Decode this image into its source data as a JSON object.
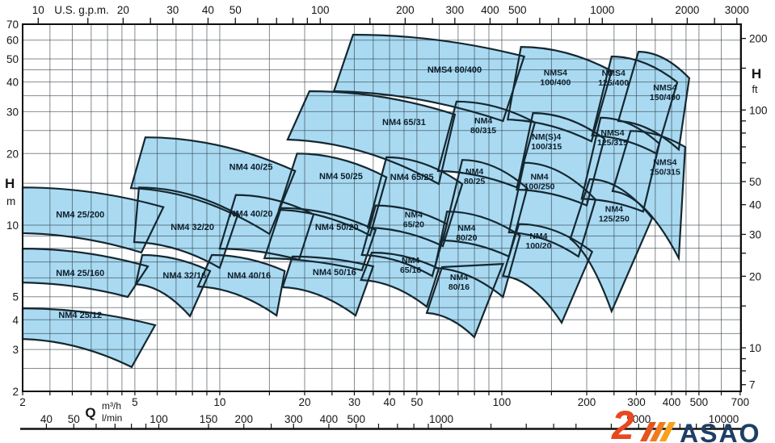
{
  "chart_data": {
    "type": "area",
    "title": "",
    "x_axis": {
      "label": "Q",
      "unit_primary": "m³/h",
      "unit_secondary": "l/min",
      "range_m3h": [
        2,
        700
      ],
      "labels_m3h": [
        2,
        5,
        10,
        20,
        30,
        40,
        50,
        100,
        200,
        300,
        400,
        500,
        700
      ],
      "labels_lmin": [
        40,
        50,
        100,
        150,
        200,
        300,
        400,
        500,
        1000,
        5000,
        10000
      ],
      "ticks_lmin": [
        40,
        50,
        60,
        70,
        80,
        90,
        100,
        150,
        200,
        250,
        300,
        400,
        500,
        600,
        700,
        800,
        900,
        1000,
        1500,
        2000,
        2500,
        3000,
        4000,
        5000,
        6000,
        7000,
        8000,
        9000,
        10000
      ]
    },
    "top_axis": {
      "unit": "U.S. g.p.m.",
      "labels": [
        10,
        20,
        30,
        40,
        50,
        100,
        200,
        300,
        400,
        500,
        1000,
        2000,
        3000
      ],
      "ticks": [
        10,
        15,
        20,
        25,
        30,
        40,
        50,
        60,
        70,
        80,
        90,
        100,
        150,
        200,
        250,
        300,
        400,
        500,
        600,
        700,
        800,
        900,
        1000,
        1500,
        2000,
        2500,
        3000
      ]
    },
    "y_axis_left": {
      "symbol": "H",
      "unit": "m",
      "range": [
        2,
        70
      ],
      "labels": [
        70,
        60,
        50,
        40,
        30,
        20,
        10,
        5,
        4,
        3,
        2
      ]
    },
    "y_axis_right": {
      "symbol": "H",
      "unit": "ft",
      "labels": [
        200,
        100,
        50,
        40,
        30,
        20,
        10,
        7
      ],
      "ticks": [
        7,
        8,
        9,
        10,
        15,
        20,
        25,
        30,
        40,
        50,
        60,
        70,
        80,
        90,
        100,
        150,
        200
      ]
    },
    "grid": {
      "on": true,
      "multipliers": [
        1,
        1.5,
        2,
        2.5,
        3,
        3.5,
        4,
        4.5,
        5,
        6,
        7,
        8,
        9
      ]
    },
    "colors": {
      "fill": "#a9daf2",
      "outline": "#152730",
      "grid": "rgba(50,60,68,0.6)",
      "frame": "#0d0d0d",
      "pump_label": "#0e1e2a",
      "axis_text": "#161616"
    },
    "pumps": [
      {
        "model": "NM4 25/200",
        "wrap": false,
        "v": false,
        "label": [
          3.2,
          11.1
        ],
        "envelope": {
          "tl": [
            2,
            14.4
          ],
          "tr": [
            6.31,
            11.9
          ],
          "br": [
            5.27,
            7.67
          ],
          "bl": [
            2,
            9.25
          ]
        }
      },
      {
        "model": "NM4 25/160",
        "wrap": false,
        "v": false,
        "label": [
          3.2,
          6.3
        ],
        "envelope": {
          "tl": [
            2,
            7.97
          ],
          "tr": [
            5.56,
            6.71
          ],
          "br": [
            4.72,
            4.99
          ],
          "bl": [
            2,
            5.74
          ]
        }
      },
      {
        "model": "NM4 25/12",
        "wrap": false,
        "v": true,
        "label": [
          3.2,
          4.2
        ],
        "envelope": {
          "tl": [
            2,
            4.47
          ],
          "tr": [
            5.9,
            3.8
          ],
          "br": [
            4.87,
            2.53
          ],
          "bl": [
            2,
            3.32
          ]
        }
      },
      {
        "model": "NM4 32/20",
        "wrap": false,
        "v": false,
        "label": [
          8,
          9.85
        ],
        "envelope": {
          "tl": [
            5.17,
            14.4
          ],
          "tr": [
            11.6,
            11.1
          ],
          "br": [
            10.0,
            6.61
          ],
          "bl": [
            4.97,
            8.49
          ]
        }
      },
      {
        "model": "NM4 32/16",
        "wrap": false,
        "v": true,
        "label": [
          7.5,
          6.16
        ],
        "envelope": {
          "tl": [
            5.31,
            7.49
          ],
          "tr": [
            9.24,
            6.41
          ],
          "br": [
            7.84,
            4.14
          ],
          "bl": [
            5.04,
            5.65
          ]
        }
      },
      {
        "model": "NM4 40/25",
        "wrap": false,
        "v": false,
        "label": [
          12.9,
          17.6
        ],
        "envelope": {
          "tl": [
            5.45,
            23.4
          ],
          "tr": [
            18.5,
            16.9
          ],
          "br": [
            15.0,
            9.18
          ],
          "bl": [
            4.84,
            14.3
          ]
        }
      },
      {
        "model": "NM4 40/20",
        "wrap": false,
        "v": false,
        "label": [
          12.9,
          11.2
        ],
        "envelope": {
          "tl": [
            11.4,
            13.4
          ],
          "tr": [
            21.5,
            11.1
          ],
          "br": [
            19.1,
            7.15
          ],
          "bl": [
            10.0,
            7.97
          ]
        }
      },
      {
        "model": "NM4 40/16",
        "wrap": false,
        "v": true,
        "label": [
          12.7,
          6.16
        ],
        "envelope": {
          "tl": [
            9.37,
            7.49
          ],
          "tr": [
            17.0,
            6.41
          ],
          "br": [
            15.9,
            4.17
          ],
          "bl": [
            8.37,
            5.52
          ]
        }
      },
      {
        "model": "NM4 50/25",
        "wrap": false,
        "v": false,
        "label": [
          26.9,
          16.1
        ],
        "envelope": {
          "tl": [
            18.8,
            20.0
          ],
          "tr": [
            39.0,
            15.9
          ],
          "br": [
            34.1,
            9.04
          ],
          "bl": [
            16.2,
            11.6
          ]
        }
      },
      {
        "model": "NM4 50/20",
        "wrap": false,
        "v": false,
        "label": [
          26.0,
          9.85
        ],
        "envelope": {
          "tl": [
            16.5,
            11.8
          ],
          "tr": [
            35.7,
            9.54
          ],
          "br": [
            31.9,
            6.46
          ],
          "bl": [
            14.4,
            7.26
          ]
        }
      },
      {
        "model": "NM4 50/16",
        "wrap": false,
        "v": true,
        "label": [
          25.5,
          6.36
        ],
        "envelope": {
          "tl": [
            18.1,
            7.38
          ],
          "tr": [
            35.0,
            6.71
          ],
          "br": [
            30.3,
            4.17
          ],
          "bl": [
            16.7,
            5.48
          ]
        }
      },
      {
        "model": "NM4 65/31",
        "wrap": false,
        "v": false,
        "label": [
          45.0,
          27.2
        ],
        "envelope": {
          "tl": [
            20.8,
            36.6
          ],
          "tr": [
            68.2,
            29.2
          ],
          "br": [
            59.8,
            14.9
          ],
          "bl": [
            17.4,
            22.9
          ]
        }
      },
      {
        "model": "NM4 65/25",
        "wrap": false,
        "v": false,
        "label": [
          48.0,
          16.0
        ],
        "envelope": {
          "tl": [
            39.0,
            19.3
          ],
          "tr": [
            72.4,
            14.9
          ],
          "br": [
            61.8,
            8.16
          ],
          "bl": [
            33.5,
            9.77
          ]
        }
      },
      {
        "model": "NM4 65/20",
        "wrap": true,
        "v": false,
        "label": [
          48.7,
          10.6
        ],
        "envelope": {
          "tl": [
            35.7,
            12.1
          ],
          "tr": [
            63.9,
            10.1
          ],
          "br": [
            56.7,
            6.11
          ],
          "bl": [
            31.9,
            7.49
          ]
        }
      },
      {
        "model": "NM4 65/16",
        "wrap": true,
        "v": true,
        "label": [
          47.5,
          6.82
        ],
        "envelope": {
          "tl": [
            34.6,
            7.67
          ],
          "tr": [
            59.8,
            6.56
          ],
          "br": [
            54.2,
            4.54
          ],
          "bl": [
            31.7,
            5.88
          ]
        }
      },
      {
        "model": "NMS4 80/400",
        "wrap": false,
        "v": false,
        "label": [
          68.0,
          45.2
        ],
        "envelope": {
          "tl": [
            29.7,
            63.2
          ],
          "tr": [
            120,
            51.2
          ],
          "br": [
            101,
            27.4
          ],
          "bl": [
            25.4,
            36.6
          ]
        }
      },
      {
        "model": "NM4 80/315",
        "wrap": true,
        "v": false,
        "label": [
          86.0,
          26.4
        ],
        "envelope": {
          "tl": [
            69.1,
            33.1
          ],
          "tr": [
            131,
            27.0
          ],
          "br": [
            113,
            14.4
          ],
          "bl": [
            59.4,
            16.9
          ]
        }
      },
      {
        "model": "NM4 80/25",
        "wrap": true,
        "v": false,
        "label": [
          80.0,
          16.1
        ],
        "envelope": {
          "tl": [
            72.4,
            18.8
          ],
          "tr": [
            123,
            14.3
          ],
          "br": [
            106,
            7.38
          ],
          "bl": [
            61.8,
            8.62
          ]
        }
      },
      {
        "model": "NM4 80/20",
        "wrap": true,
        "v": false,
        "label": [
          75.0,
          9.32
        ],
        "envelope": {
          "tl": [
            63.9,
            11.4
          ],
          "tr": [
            116,
            9.04
          ],
          "br": [
            101,
            4.99
          ],
          "bl": [
            57.9,
            6.61
          ]
        }
      },
      {
        "model": "NM4 80/16",
        "wrap": true,
        "v": true,
        "label": [
          70.5,
          5.79
        ],
        "envelope": {
          "tl": [
            61.4,
            6.66
          ],
          "tr": [
            101,
            6.87
          ],
          "br": [
            79.9,
            3.38
          ],
          "bl": [
            54.2,
            4.27
          ]
        }
      },
      {
        "model": "NMS4 100/400",
        "wrap": true,
        "v": false,
        "label": [
          155,
          42.0
        ],
        "envelope": {
          "tl": [
            117,
            56.2
          ],
          "tr": [
            245,
            44.5
          ],
          "br": [
            208,
            22.5
          ],
          "bl": [
            105,
            27.8
          ]
        }
      },
      {
        "model": "NM(S)4 100/315",
        "wrap": true,
        "v": false,
        "label": [
          144,
          22.5
        ],
        "envelope": {
          "tl": [
            129,
            29.6
          ],
          "tr": [
            231,
            23.1
          ],
          "br": [
            200,
            12.1
          ],
          "bl": [
            113,
            14.1
          ]
        }
      },
      {
        "model": "NM4 100/250",
        "wrap": true,
        "v": false,
        "label": [
          136,
          15.3
        ],
        "envelope": {
          "tl": [
            120,
            18.3
          ],
          "tr": [
            215,
            12.8
          ],
          "br": [
            187,
            7.38
          ],
          "bl": [
            106,
            9.32
          ]
        }
      },
      {
        "model": "NM4 100/20",
        "wrap": true,
        "v": true,
        "label": [
          135,
          8.62
        ],
        "envelope": {
          "tl": [
            115,
            10.1
          ],
          "tr": [
            209,
            7.73
          ],
          "br": [
            163,
            3.89
          ],
          "bl": [
            101,
            6.11
          ]
        }
      },
      {
        "model": "NMS4 125/400",
        "wrap": true,
        "v": false,
        "label": [
          249,
          41.8
        ],
        "envelope": {
          "tl": [
            245,
            51.2
          ],
          "tr": [
            419,
            39.9
          ],
          "br": [
            353,
            20.0
          ],
          "bl": [
            209,
            23.8
          ]
        }
      },
      {
        "model": "NMS4 125/315",
        "wrap": true,
        "v": false,
        "label": [
          247,
          23.4
        ],
        "envelope": {
          "tl": [
            224,
            28.3
          ],
          "tr": [
            362,
            22.0
          ],
          "br": [
            317,
            11.4
          ],
          "bl": [
            192,
            12.9
          ]
        }
      },
      {
        "model": "NM4 125/250",
        "wrap": true,
        "v": true,
        "label": [
          250,
          11.2
        ],
        "envelope": {
          "tl": [
            205,
            15.6
          ],
          "tr": [
            341,
            10.7
          ],
          "br": [
            245,
            4.34
          ],
          "bl": [
            175,
            8.76
          ]
        }
      },
      {
        "model": "NMS4 150/400",
        "wrap": true,
        "v": false,
        "label": [
          379,
          36.3
        ],
        "envelope": {
          "tl": [
            305,
            53.6
          ],
          "tr": [
            462,
            41.5
          ],
          "br": [
            424,
            20.8
          ],
          "bl": [
            259,
            27.4
          ]
        }
      },
      {
        "model": "NMS4 150/315",
        "wrap": true,
        "v": true,
        "label": [
          379,
          17.6
        ],
        "envelope": {
          "tl": [
            286,
            24.9
          ],
          "tr": [
            447,
            21.3
          ],
          "br": [
            424,
            7.26
          ],
          "bl": [
            247,
            13.9
          ]
        }
      }
    ]
  },
  "logo": {
    "text": "ASAO",
    "glyph": "2",
    "text_color": "#1d3f66",
    "glyph_color": "#e8481e",
    "stripe_colors": [
      "#e2541e",
      "#f07c1f",
      "#f9a11b"
    ]
  }
}
